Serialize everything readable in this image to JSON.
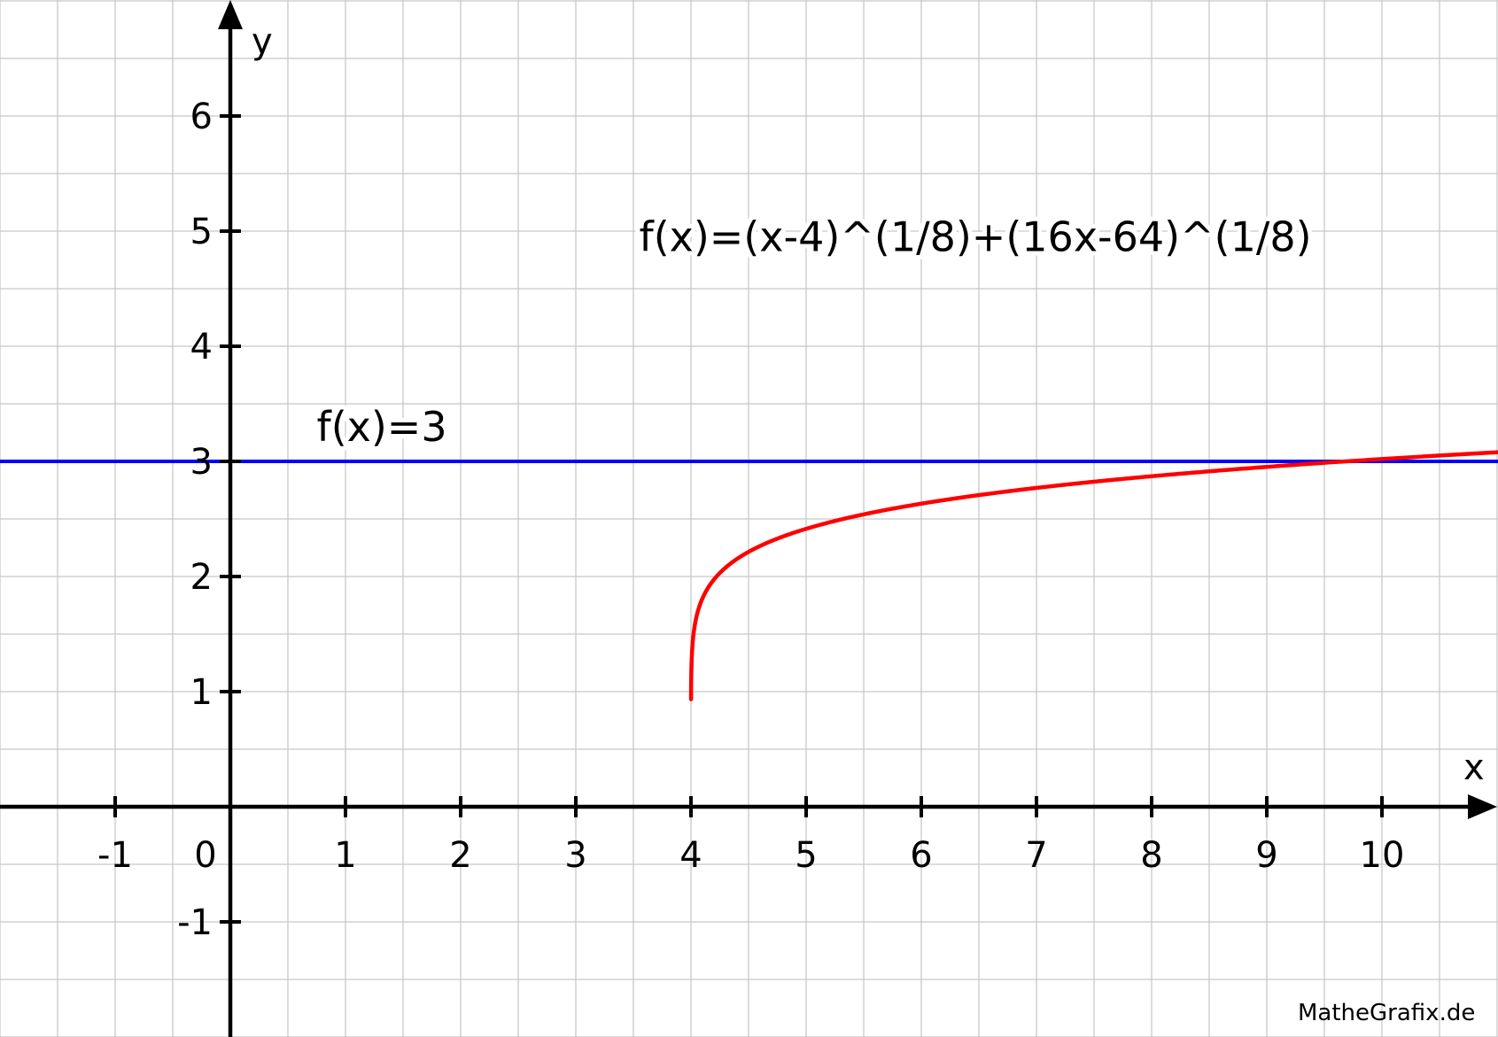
{
  "chart_data": {
    "type": "line",
    "xlabel": "x",
    "ylabel": "y",
    "xlim": [
      -2,
      11
    ],
    "ylim": [
      -2,
      7
    ],
    "grid": true,
    "grid_step": 0.5,
    "x_ticks": [
      "-1",
      "0",
      "1",
      "2",
      "3",
      "4",
      "5",
      "6",
      "7",
      "8",
      "9",
      "10"
    ],
    "y_ticks": [
      "-1",
      "1",
      "2",
      "3",
      "4",
      "5",
      "6"
    ],
    "series": [
      {
        "name": "f(x)=(x-4)^(1/8)+(16x-64)^(1/8)",
        "color": "#ff0000",
        "function": "(x-4)^(1/8)+(16x-64)^(1/8)",
        "domain": [
          4,
          11
        ]
      },
      {
        "name": "f(x)=3",
        "color": "#0000ff",
        "function": "3",
        "domain": [
          -2,
          11
        ]
      }
    ],
    "annotations": [
      {
        "text": "f(x)=(x-4)^(1/8)+(16x-64)^(1/8)",
        "x": 3.55,
        "y": 4.95
      },
      {
        "text": "f(x)=3",
        "x": 0.75,
        "y": 3.3
      }
    ],
    "watermark": "MatheGrafix.de"
  }
}
